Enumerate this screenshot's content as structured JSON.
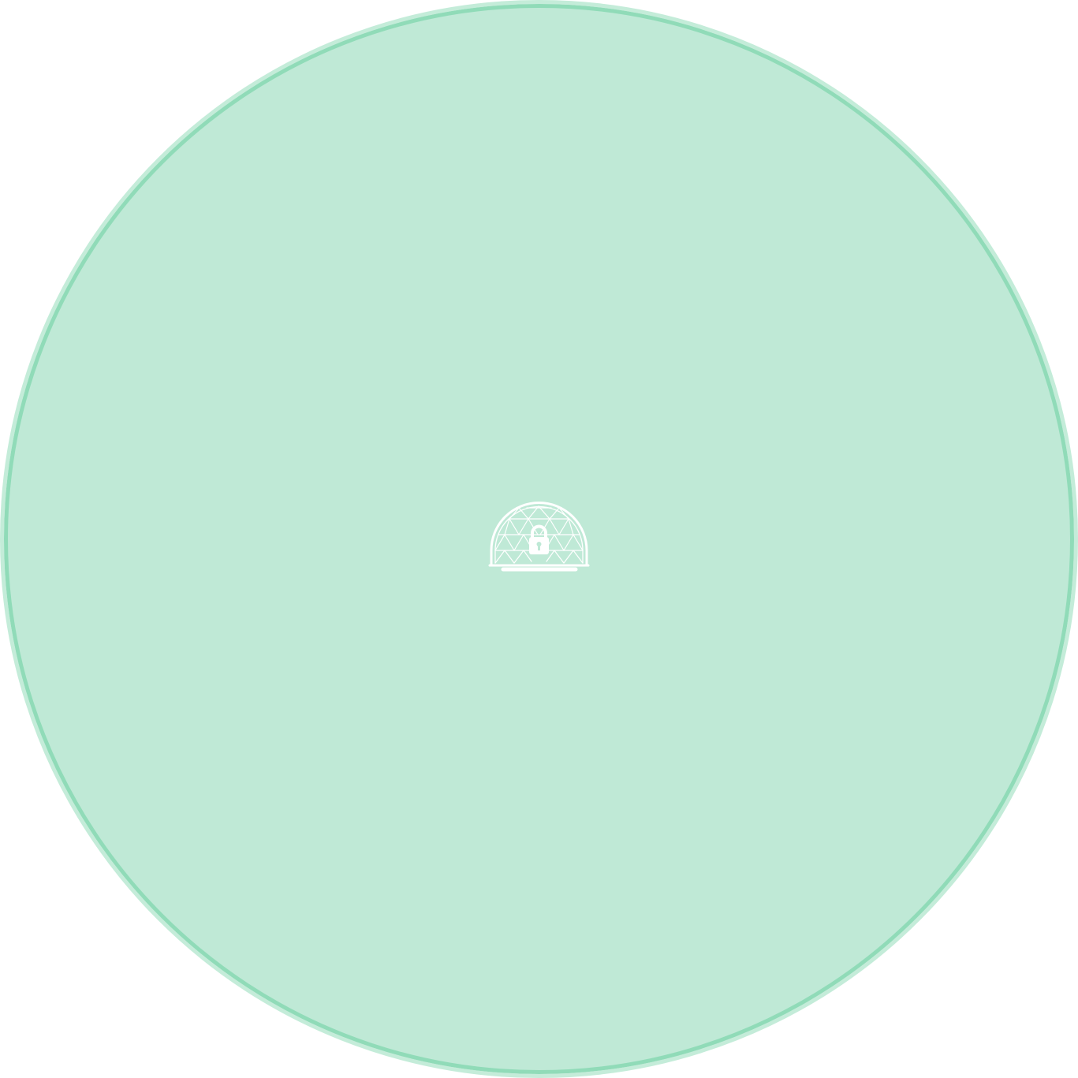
{
  "colors": {
    "background": "#ffffff",
    "disc_fill": "#bfe9d6",
    "disc_ring_inner": "#90dbb8",
    "disc_ring_outer": "#c4ecd9",
    "icon": "#ffffff"
  },
  "icons": {
    "center": "geodesic-dome-lock-icon"
  }
}
